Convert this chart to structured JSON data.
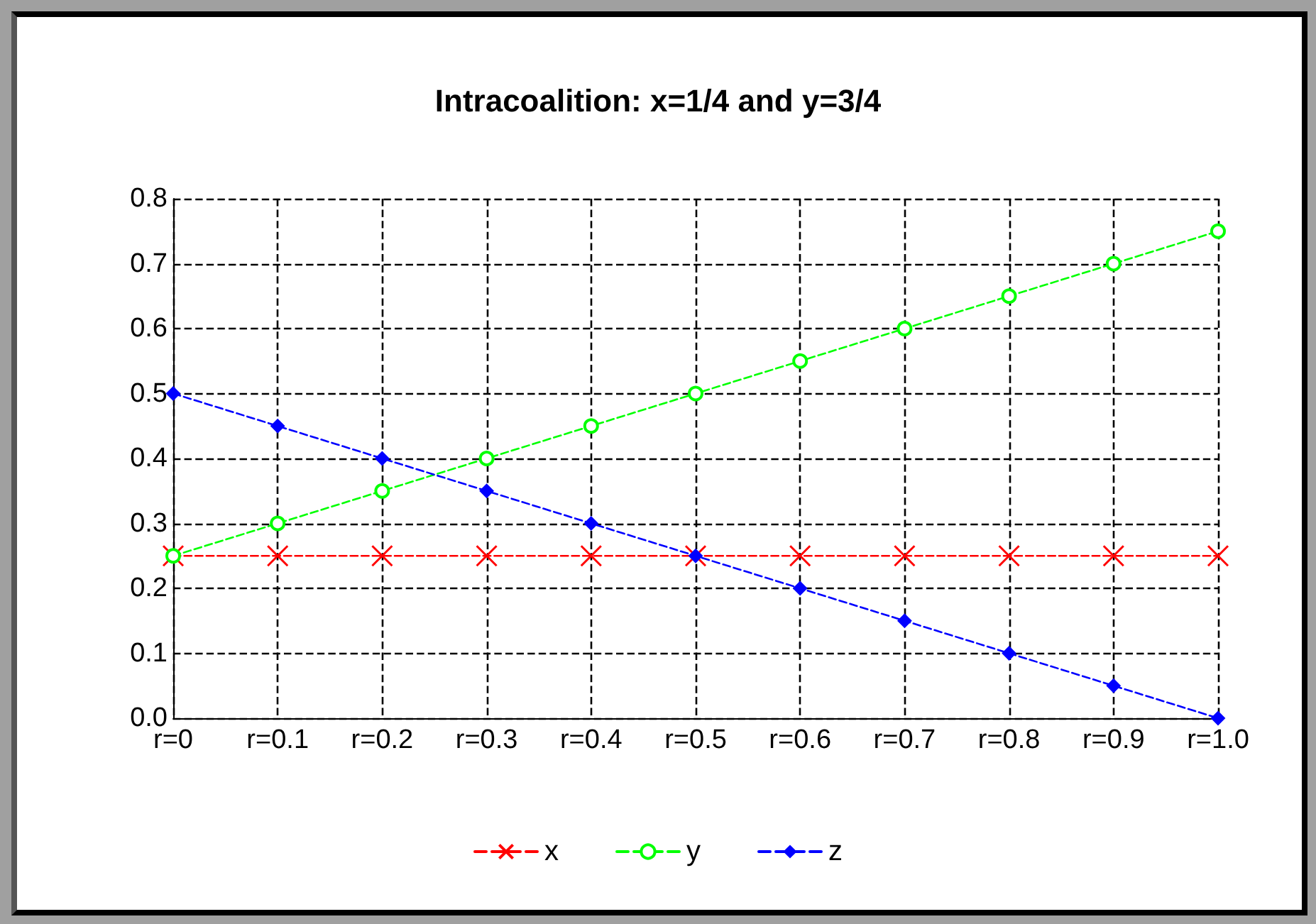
{
  "chart_data": {
    "type": "line",
    "title": "Intracoalition: x=1/4 and y=3/4",
    "categories": [
      "r=0",
      "r=0.1",
      "r=0.2",
      "r=0.3",
      "r=0.4",
      "r=0.5",
      "r=0.6",
      "r=0.7",
      "r=0.8",
      "r=0.9",
      "r=1.0"
    ],
    "series": [
      {
        "name": "x",
        "color": "#ff0000",
        "marker": "cross",
        "values": [
          0.25,
          0.25,
          0.25,
          0.25,
          0.25,
          0.25,
          0.25,
          0.25,
          0.25,
          0.25,
          0.25
        ]
      },
      {
        "name": "y",
        "color": "#00ff00",
        "marker": "circle",
        "values": [
          0.25,
          0.3,
          0.35,
          0.4,
          0.45,
          0.5,
          0.55,
          0.6,
          0.65,
          0.7,
          0.75
        ]
      },
      {
        "name": "z",
        "color": "#0000ff",
        "marker": "diamond",
        "values": [
          0.5,
          0.45,
          0.4,
          0.35,
          0.3,
          0.25,
          0.2,
          0.15,
          0.1,
          0.05,
          0
        ]
      }
    ],
    "ylim": [
      0,
      0.8
    ],
    "yticks": [
      {
        "value": 0,
        "label": "0.0"
      },
      0.1,
      0.2,
      0.3,
      0.4,
      0.5,
      0.6,
      0.7,
      0.8
    ],
    "grid": true,
    "legend": "bottom",
    "line_style": "dashed"
  }
}
